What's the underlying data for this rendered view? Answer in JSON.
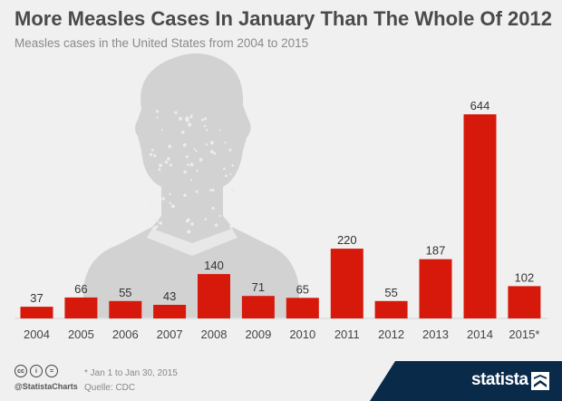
{
  "header": {
    "title": "More Measles Cases In January Than The Whole Of 2012",
    "subtitle": "Measles cases in the United States from 2004 to 2015"
  },
  "chart_data": {
    "type": "bar",
    "categories": [
      "2004",
      "2005",
      "2006",
      "2007",
      "2008",
      "2009",
      "2010",
      "2011",
      "2012",
      "2013",
      "2014",
      "2015*"
    ],
    "values": [
      37,
      66,
      55,
      43,
      140,
      71,
      65,
      220,
      55,
      187,
      644,
      102
    ],
    "title": "More Measles Cases In January Than The Whole Of 2012",
    "subtitle": "Measles cases in the United States from 2004 to 2015",
    "bar_color": "#d7190b",
    "ylim": [
      0,
      644
    ],
    "grid": false,
    "legend": "none"
  },
  "footer": {
    "license_icons": [
      "cc",
      "i",
      "="
    ],
    "handle": "@StatistaCharts",
    "footnote": "* Jan 1 to Jan 30, 2015",
    "source": "Quelle: CDC",
    "brand": "statista"
  },
  "colors": {
    "background": "#f0f0f0",
    "bar": "#d7190b",
    "silhouette": "#d2d2d2",
    "brand_band": "#0a2a4a"
  },
  "decoration": {
    "illustration": "person-with-measles-spots-silhouette"
  }
}
